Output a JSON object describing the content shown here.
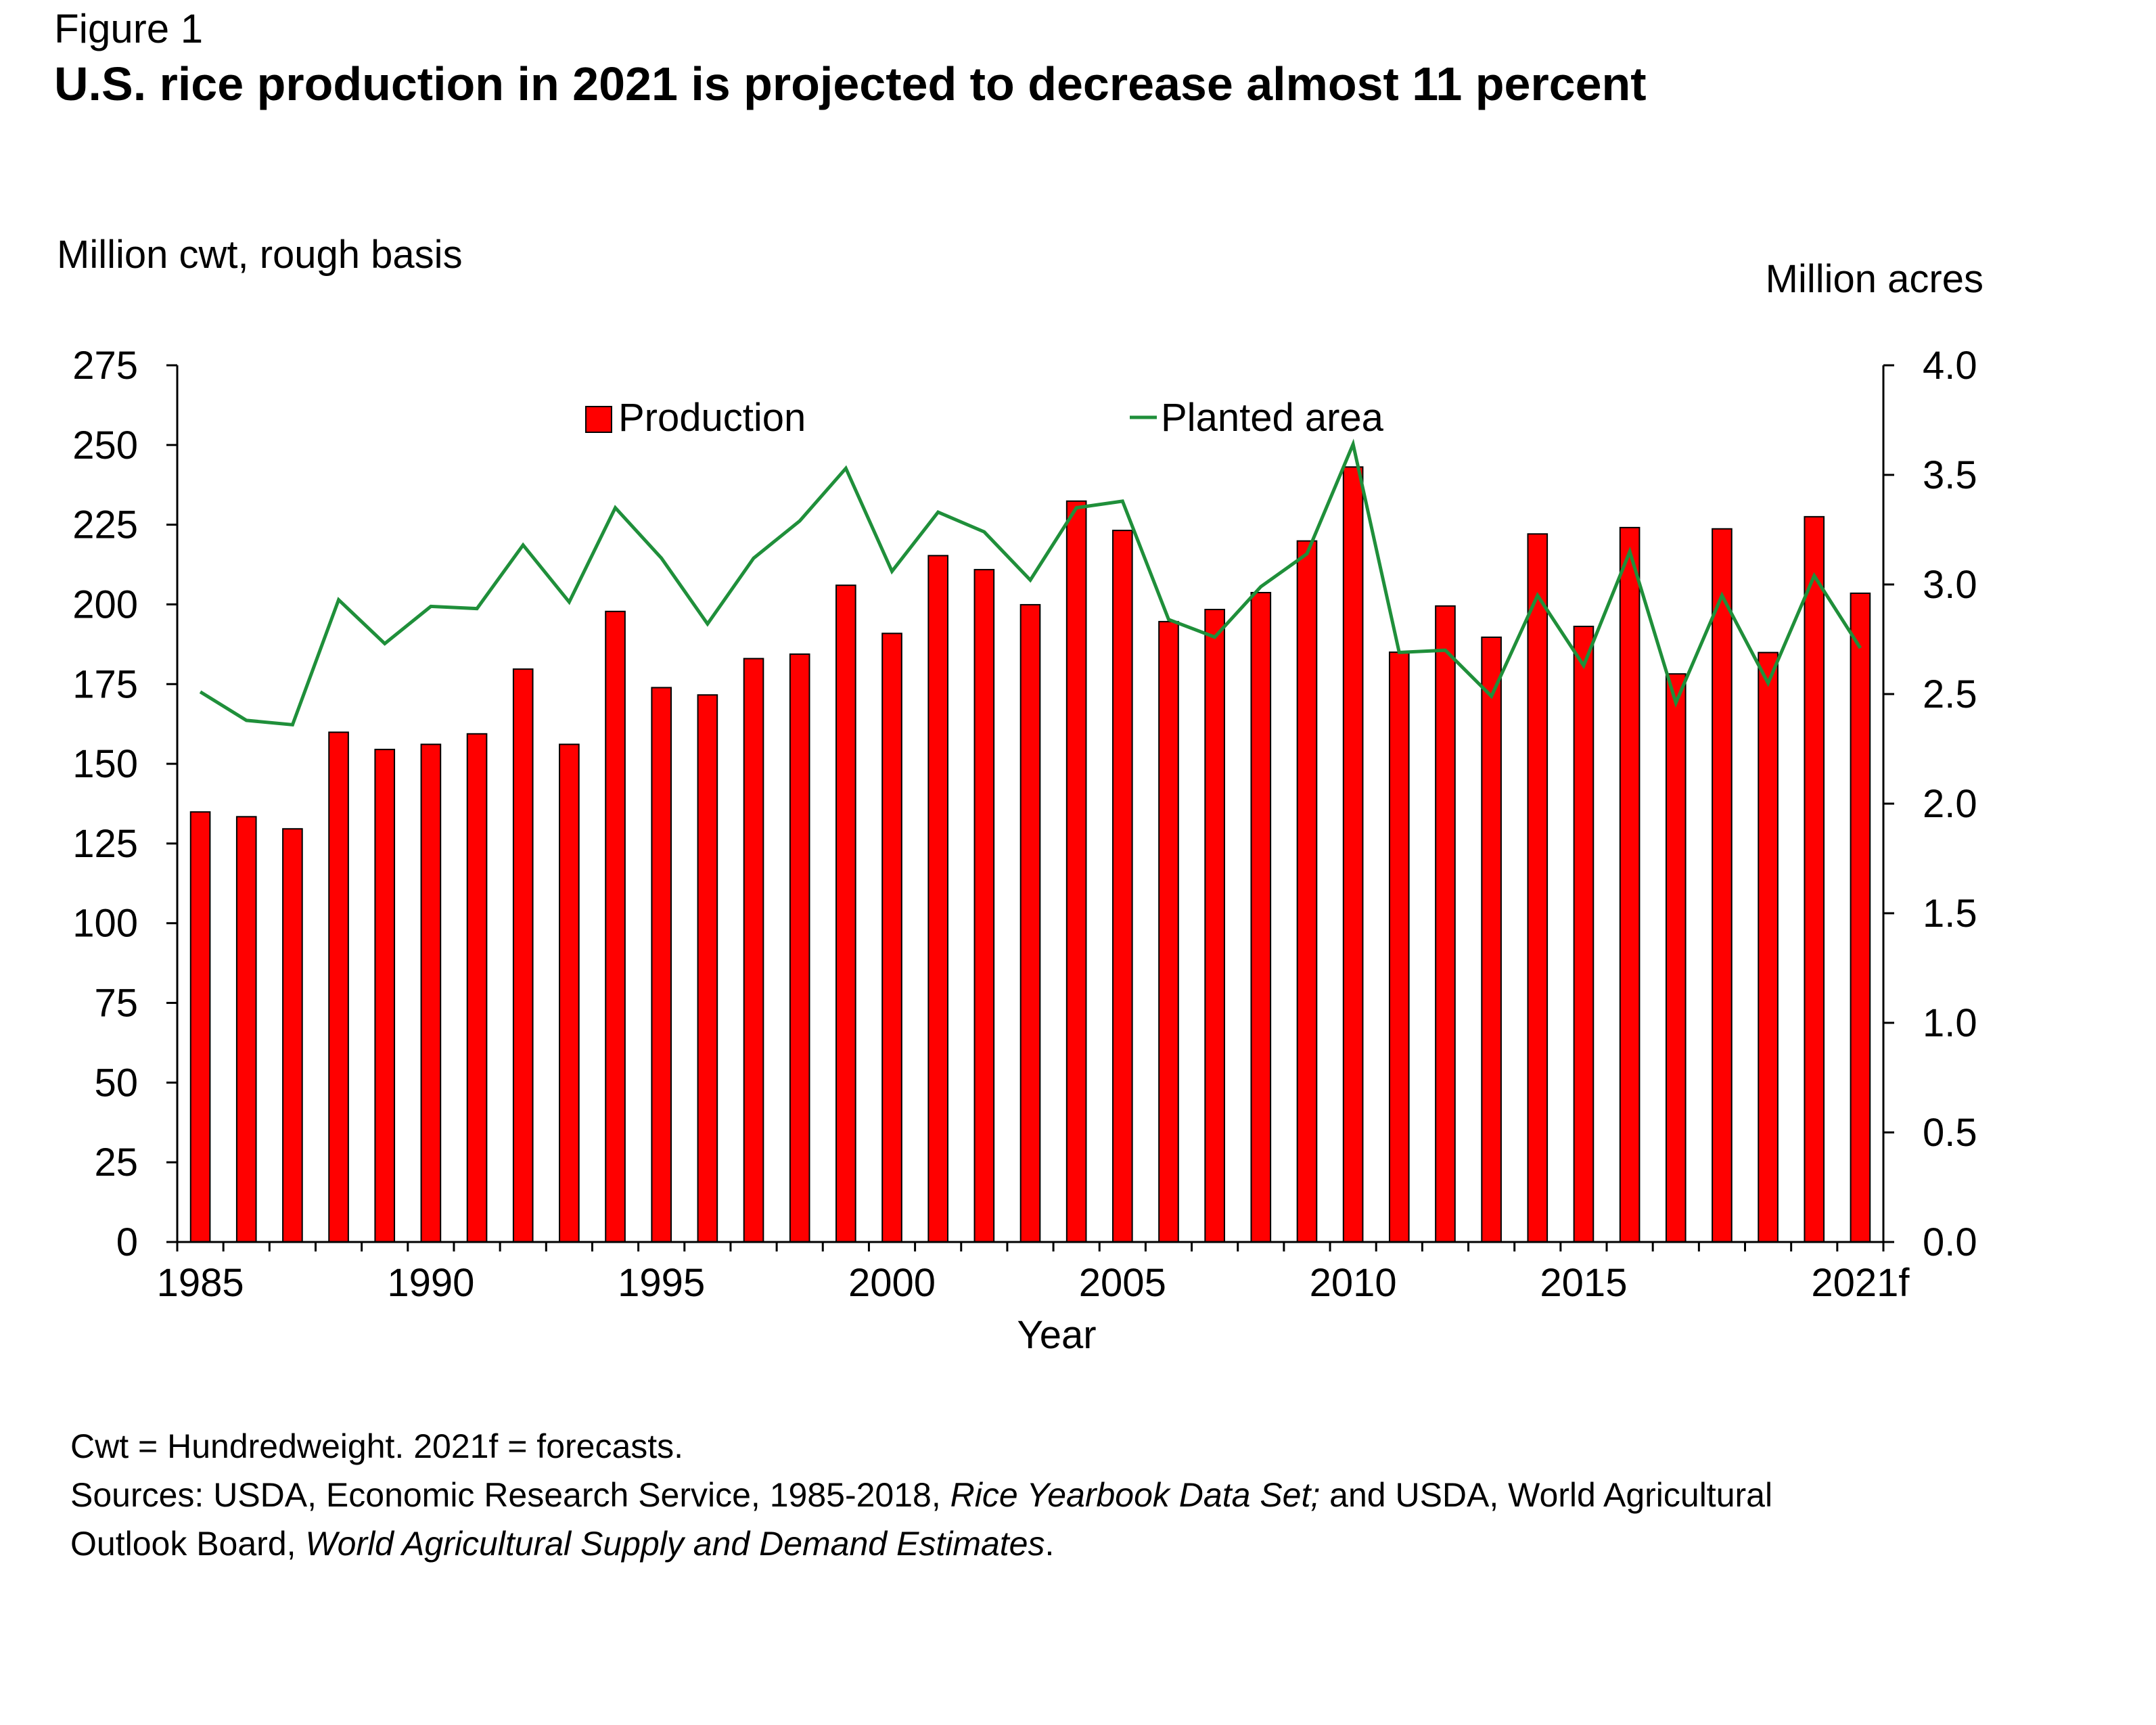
{
  "figure_label": "Figure 1",
  "title": "U.S. rice production in 2021 is projected to decrease almost 11 percent",
  "notes": {
    "line1": "Cwt = Hundredweight.   2021f = forecasts.",
    "line2_a": "Sources: USDA, Economic Research Service, 1985-2018, ",
    "line2_b": "Rice Yearbook Data Set;",
    "line2_c": " and USDA, World Agricultural",
    "line3_a": "Outlook Board, ",
    "line3_b": "World Agricultural Supply and Demand Estimates",
    "line3_c": "."
  },
  "colors": {
    "bar_fill": "#ff0000",
    "bar_stroke": "#000000",
    "line": "#1f8f3a",
    "axis": "#000000"
  },
  "chart_data": {
    "type": "bar",
    "title": "U.S. rice production in 2021 is projected to decrease almost 11 percent",
    "xlabel": "Year",
    "ylabel_left": "Million cwt, rough basis",
    "ylabel_right": "Million acres",
    "ylim_left": [
      0,
      275
    ],
    "ylim_right": [
      0,
      4.0
    ],
    "yticks_left": [
      "0",
      "25",
      "50",
      "75",
      "100",
      "125",
      "150",
      "175",
      "200",
      "225",
      "250",
      "275"
    ],
    "yticks_right": [
      "0.0",
      "0.5",
      "1.0",
      "1.5",
      "2.0",
      "2.5",
      "3.0",
      "3.5",
      "4.0"
    ],
    "x_tick_labels": [
      {
        "index": 0,
        "label": "1985"
      },
      {
        "index": 5,
        "label": "1990"
      },
      {
        "index": 10,
        "label": "1995"
      },
      {
        "index": 15,
        "label": "2000"
      },
      {
        "index": 20,
        "label": "2005"
      },
      {
        "index": 25,
        "label": "2010"
      },
      {
        "index": 30,
        "label": "2015"
      },
      {
        "index": 36,
        "label": "2021f"
      }
    ],
    "categories": [
      "1985",
      "1986",
      "1987",
      "1988",
      "1989",
      "1990",
      "1991",
      "1992",
      "1993",
      "1994",
      "1995",
      "1996",
      "1997",
      "1998",
      "1999",
      "2000",
      "2001",
      "2002",
      "2003",
      "2004",
      "2005",
      "2006",
      "2007",
      "2008",
      "2009",
      "2010",
      "2011",
      "2012",
      "2013",
      "2014",
      "2015",
      "2016",
      "2017",
      "2018",
      "2019",
      "2020",
      "2021f"
    ],
    "legend": {
      "placement": "top",
      "production": "Production",
      "planted_area": "Planted area"
    },
    "series": [
      {
        "name": "Production",
        "axis": "left",
        "type": "bar",
        "values": [
          134.9,
          133.4,
          129.6,
          159.9,
          154.5,
          156.1,
          159.4,
          179.7,
          156.1,
          197.8,
          173.9,
          171.6,
          183.0,
          184.4,
          206.0,
          190.9,
          215.3,
          210.9,
          199.9,
          232.4,
          223.2,
          194.6,
          198.4,
          203.7,
          219.9,
          243.1,
          185.0,
          199.5,
          189.7,
          222.1,
          193.1,
          224.1,
          178.2,
          223.7,
          184.9,
          227.5,
          203.5
        ]
      },
      {
        "name": "Planted area",
        "axis": "right",
        "type": "line",
        "values": [
          2.51,
          2.38,
          2.36,
          2.93,
          2.73,
          2.9,
          2.89,
          3.18,
          2.92,
          3.35,
          3.12,
          2.82,
          3.12,
          3.29,
          3.53,
          3.06,
          3.33,
          3.24,
          3.02,
          3.35,
          3.38,
          2.84,
          2.76,
          2.99,
          3.14,
          3.64,
          2.69,
          2.7,
          2.49,
          2.95,
          2.63,
          3.15,
          2.46,
          2.95,
          2.55,
          3.04,
          2.71
        ]
      }
    ]
  }
}
